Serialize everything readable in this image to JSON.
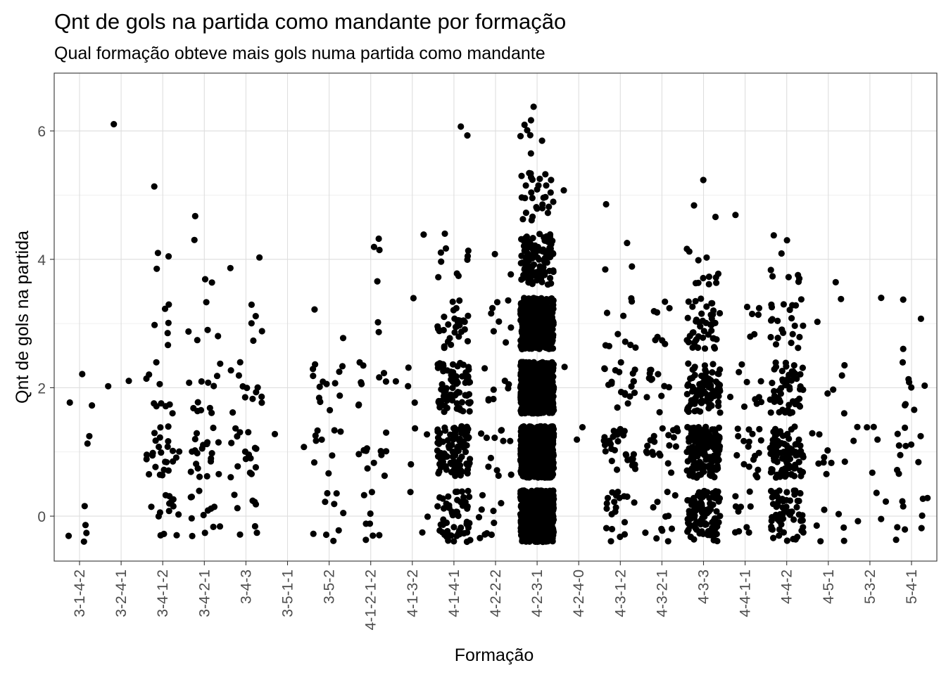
{
  "chart_data": {
    "type": "scatter",
    "title": "Qnt de gols na partida como mandante por formação",
    "subtitle": "Qual formação obteve mais gols numa partida como mandante",
    "xlabel": "Formação",
    "ylabel": "Qnt de gols na partida",
    "categories": [
      "3-1-4-2",
      "3-2-4-1",
      "3-4-1-2",
      "3-4-2-1",
      "3-4-3",
      "3-5-1-1",
      "3-5-2",
      "4-1-2-1-2",
      "4-1-3-2",
      "4-1-4-1",
      "4-2-2-2",
      "4-2-3-1",
      "4-2-4-0",
      "4-3-1-2",
      "4-3-2-1",
      "4-3-3",
      "4-4-1-1",
      "4-4-2",
      "4-5-1",
      "5-3-2",
      "5-4-1"
    ],
    "yticks": [
      0,
      2,
      4,
      6
    ],
    "ylim": [
      -0.7,
      6.9
    ],
    "jitter": 0.4,
    "grid": true,
    "legend": "none",
    "point_color": "#000000",
    "series": [
      {
        "category": "3-1-4-2",
        "counts": {
          "0": 5,
          "1": 2,
          "2": 3,
          "3": 0,
          "4": 0,
          "5": 0,
          "6": 0
        }
      },
      {
        "category": "3-2-4-1",
        "counts": {
          "0": 0,
          "1": 0,
          "2": 2,
          "3": 0,
          "4": 0,
          "5": 0,
          "6": 1
        }
      },
      {
        "category": "3-4-1-2",
        "counts": {
          "0": 14,
          "1": 25,
          "2": 10,
          "3": 6,
          "4": 3,
          "5": 1,
          "6": 0
        }
      },
      {
        "category": "3-4-2-1",
        "counts": {
          "0": 12,
          "1": 20,
          "2": 12,
          "3": 5,
          "4": 3,
          "5": 1,
          "6": 0
        }
      },
      {
        "category": "3-4-3",
        "counts": {
          "0": 8,
          "1": 16,
          "2": 12,
          "3": 5,
          "4": 2,
          "5": 0,
          "6": 0
        }
      },
      {
        "category": "3-5-1-1",
        "counts": {
          "0": 0,
          "1": 2,
          "2": 0,
          "3": 0,
          "4": 0,
          "5": 0,
          "6": 0
        }
      },
      {
        "category": "3-5-2",
        "counts": {
          "0": 9,
          "1": 9,
          "2": 13,
          "3": 2,
          "4": 0,
          "5": 0,
          "6": 0
        }
      },
      {
        "category": "4-1-2-1-2",
        "counts": {
          "0": 8,
          "1": 12,
          "2": 9,
          "3": 2,
          "4": 4,
          "5": 0,
          "6": 0
        }
      },
      {
        "category": "4-1-3-2",
        "counts": {
          "0": 3,
          "1": 3,
          "2": 4,
          "3": 1,
          "4": 1,
          "5": 0,
          "6": 0
        }
      },
      {
        "category": "4-1-4-1",
        "counts": {
          "0": 55,
          "1": 95,
          "2": 75,
          "3": 30,
          "4": 10,
          "5": 0,
          "6": 2
        }
      },
      {
        "category": "4-2-2-2",
        "counts": {
          "0": 10,
          "1": 12,
          "2": 8,
          "3": 8,
          "4": 2,
          "5": 0,
          "6": 0
        }
      },
      {
        "category": "4-2-3-1",
        "counts": {
          "0": 700,
          "1": 800,
          "2": 650,
          "3": 420,
          "4": 110,
          "5": 30,
          "6": 8
        }
      },
      {
        "category": "4-2-4-0",
        "counts": {
          "0": 0,
          "1": 2,
          "2": 1,
          "3": 0,
          "4": 0,
          "5": 1,
          "6": 0
        }
      },
      {
        "category": "4-3-1-2",
        "counts": {
          "0": 20,
          "1": 28,
          "2": 20,
          "3": 10,
          "4": 3,
          "5": 1,
          "6": 0
        }
      },
      {
        "category": "4-3-2-1",
        "counts": {
          "0": 12,
          "1": 20,
          "2": 12,
          "3": 8,
          "4": 0,
          "5": 0,
          "6": 0
        }
      },
      {
        "category": "4-3-3",
        "counts": {
          "0": 110,
          "1": 160,
          "2": 90,
          "3": 45,
          "4": 12,
          "5": 3,
          "6": 0
        }
      },
      {
        "category": "4-4-1-1",
        "counts": {
          "0": 10,
          "1": 18,
          "2": 10,
          "3": 6,
          "4": 0,
          "5": 1,
          "6": 0
        }
      },
      {
        "category": "4-4-2",
        "counts": {
          "0": 60,
          "1": 90,
          "2": 55,
          "3": 22,
          "4": 9,
          "5": 0,
          "6": 0
        }
      },
      {
        "category": "4-5-1",
        "counts": {
          "0": 6,
          "1": 9,
          "2": 5,
          "3": 2,
          "4": 1,
          "5": 0,
          "6": 0
        }
      },
      {
        "category": "5-3-2",
        "counts": {
          "0": 4,
          "1": 6,
          "2": 0,
          "3": 1,
          "4": 0,
          "5": 0,
          "6": 0
        }
      },
      {
        "category": "5-4-1",
        "counts": {
          "0": 9,
          "1": 10,
          "2": 8,
          "3": 3,
          "4": 0,
          "5": 0,
          "6": 0
        }
      }
    ]
  }
}
